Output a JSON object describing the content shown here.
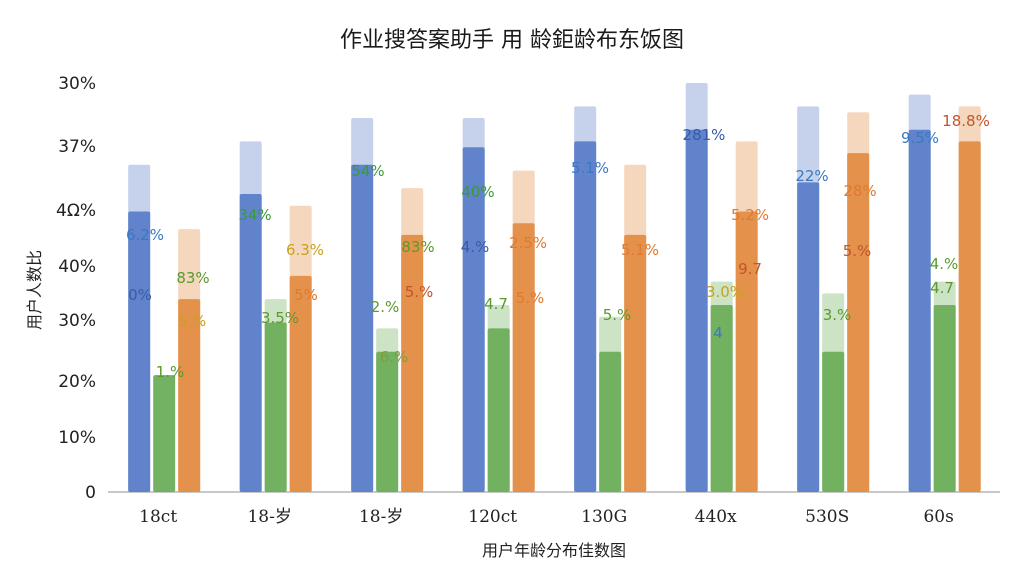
{
  "chart_data": {
    "type": "bar",
    "title": "作业搜答案助手 用  龄鉅龄布东饭图",
    "xlabel": "用户年龄分布佳数图",
    "ylabel": "用户人数比",
    "y_ticks": [
      "0",
      "10%",
      "20%",
      "30%",
      "40%",
      "4Ω%",
      "37%",
      "30%"
    ],
    "ylim": [
      0,
      70
    ],
    "grid": false,
    "categories": [
      "18ct",
      "18-岁",
      "18-岁",
      "120ct",
      "130G",
      "440x",
      "530S",
      "60s"
    ],
    "series": [
      {
        "color": "#5b7ec9",
        "values": [
          48,
          51,
          56,
          59,
          60,
          62,
          53,
          62
        ],
        "back_values": [
          56,
          60,
          64,
          64,
          66,
          70,
          66,
          68
        ]
      },
      {
        "color": "#6cae5a",
        "values": [
          20,
          29,
          24,
          28,
          24,
          32,
          24,
          32
        ],
        "back_values": [
          0,
          33,
          28,
          32,
          30,
          36,
          34,
          36
        ]
      },
      {
        "color": "#e38d45",
        "values": [
          33,
          37,
          44,
          46,
          44,
          48,
          58,
          60
        ],
        "back_values": [
          45,
          49,
          52,
          55,
          56,
          60,
          65,
          66
        ]
      }
    ],
    "series_colors": {
      "blue": "#5b7ec9",
      "green": "#6cae5a",
      "orange": "#e38d45",
      "red": "#d2553e"
    },
    "data_labels": [
      {
        "text": "6.2%",
        "color": "#3a78c2"
      },
      {
        "text": "0%",
        "color": "#3a5aa8"
      },
      {
        "text": "83%",
        "color": "#5a9a2e"
      },
      {
        "text": "5.%",
        "color": "#c9a11f"
      },
      {
        "text": "1.%",
        "color": "#5a9a2e"
      },
      {
        "text": "34%",
        "color": "#3a9a3a"
      },
      {
        "text": "6.3%",
        "color": "#c9a11f"
      },
      {
        "text": "5%",
        "color": "#e07a30"
      },
      {
        "text": "3.5%",
        "color": "#5a9a2e"
      },
      {
        "text": "54%",
        "color": "#3a9a3a"
      },
      {
        "text": "83%",
        "color": "#5a9a2e"
      },
      {
        "text": "2.%",
        "color": "#5a9a2e"
      },
      {
        "text": "5.%",
        "color": "#c0552e"
      },
      {
        "text": "6.%",
        "color": "#8a9a3a"
      },
      {
        "text": "40%",
        "color": "#3a9a3a"
      },
      {
        "text": "4.%",
        "color": "#3a5aa8"
      },
      {
        "text": "2.5%",
        "color": "#e07a30"
      },
      {
        "text": "4.7",
        "color": "#5a9a2e"
      },
      {
        "text": "5.%",
        "color": "#e07a30"
      },
      {
        "text": "5.1%",
        "color": "#3a78c2"
      },
      {
        "text": "5.1%",
        "color": "#e07a30"
      },
      {
        "text": "5.%",
        "color": "#5a9a2e"
      },
      {
        "text": "281%",
        "color": "#3a5aa8"
      },
      {
        "text": "5.2%",
        "color": "#e07a30"
      },
      {
        "text": "3.0%",
        "color": "#c9a11f"
      },
      {
        "text": "9.7",
        "color": "#c0552e"
      },
      {
        "text": "4",
        "color": "#3a78c2"
      },
      {
        "text": "22%",
        "color": "#3a78c2"
      },
      {
        "text": "28%",
        "color": "#e07a30"
      },
      {
        "text": "5.%",
        "color": "#c0552e"
      },
      {
        "text": "3.%",
        "color": "#5a9a2e"
      },
      {
        "text": "9.5%",
        "color": "#3a78c2"
      },
      {
        "text": "18.8%",
        "color": "#c0552e"
      },
      {
        "text": "4.%",
        "color": "#5a9a2e"
      },
      {
        "text": "4.7",
        "color": "#5a9a2e"
      }
    ]
  }
}
